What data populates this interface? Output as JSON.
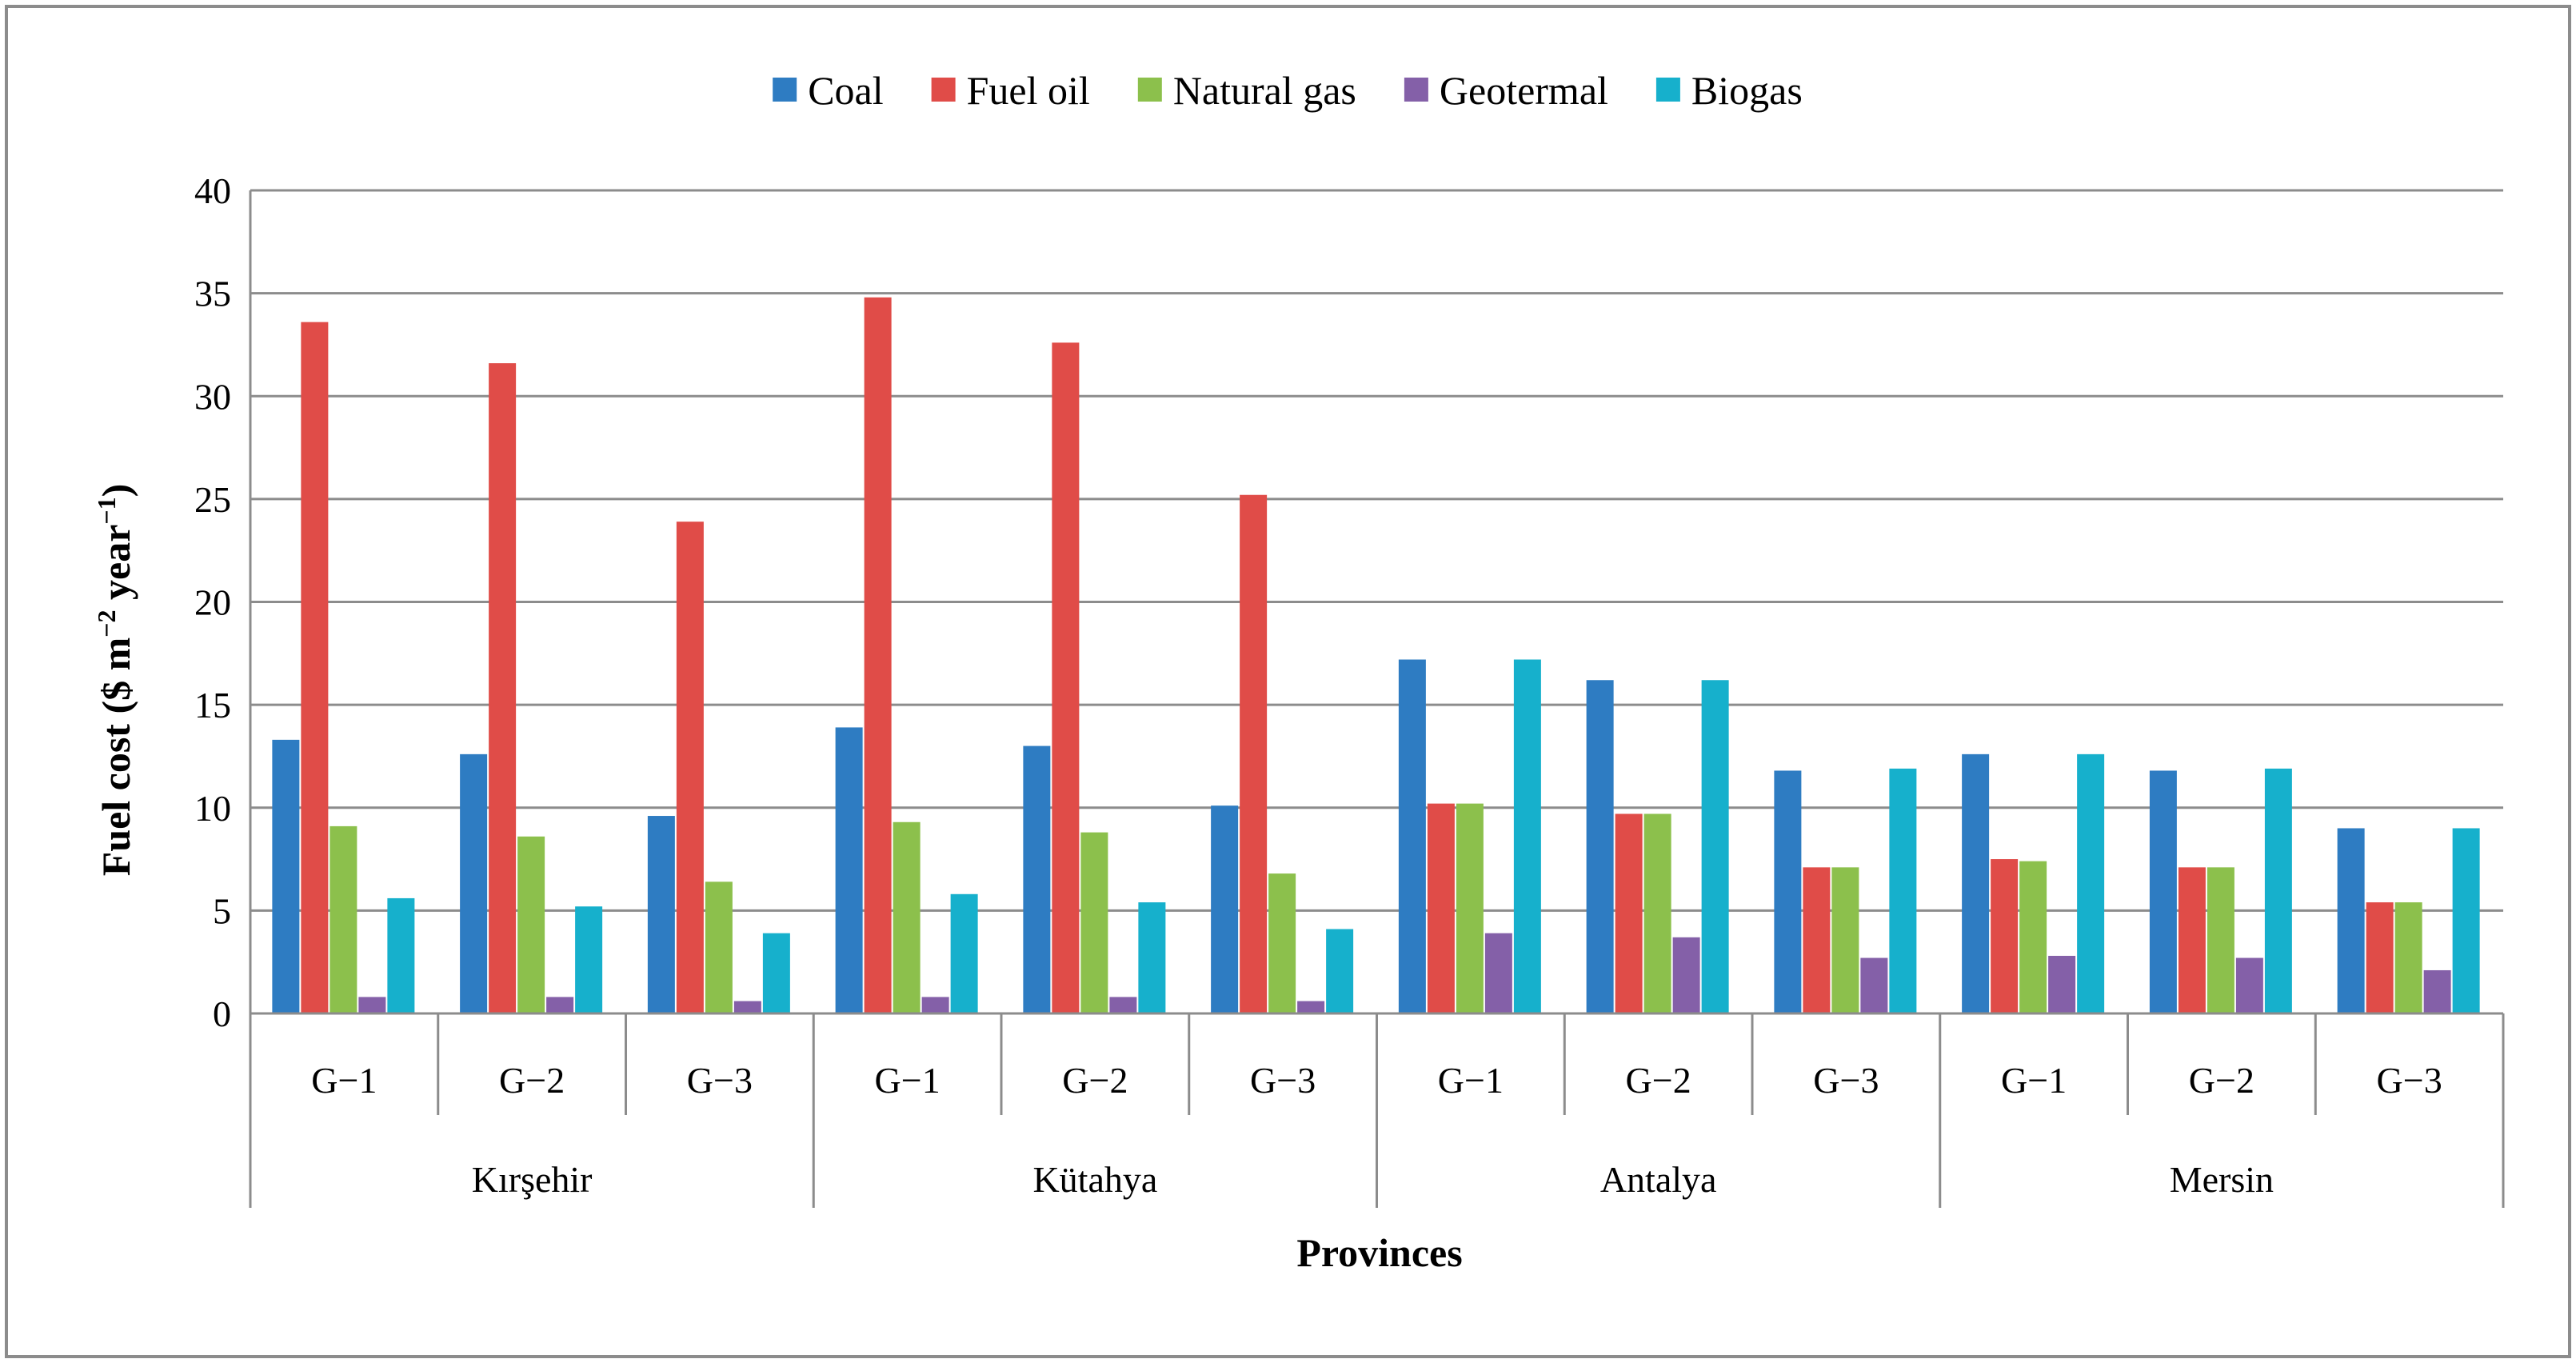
{
  "chart_data": {
    "type": "bar",
    "title": "",
    "xlabel": "Provinces",
    "ylabel": "Fuel cost ($ m−2 year−1)",
    "ylabel_parts": {
      "main": "Fuel cost ($ m",
      "sup1": "−2",
      "mid": " year",
      "sup2": "−1",
      "end": ")"
    },
    "ylim": [
      0,
      40
    ],
    "yticks": [
      "0",
      "5",
      "10",
      "15",
      "20",
      "25",
      "30",
      "35",
      "40"
    ],
    "grid": true,
    "legend_position": "top-center",
    "groups": [
      {
        "name": "Kırşehir",
        "subcategories": [
          "G−1",
          "G−2",
          "G−3"
        ]
      },
      {
        "name": "Kütahya",
        "subcategories": [
          "G−1",
          "G−2",
          "G−3"
        ]
      },
      {
        "name": "Antalya",
        "subcategories": [
          "G−1",
          "G−2",
          "G−3"
        ]
      },
      {
        "name": "Mersin",
        "subcategories": [
          "G−1",
          "G−2",
          "G−3"
        ]
      }
    ],
    "series": [
      {
        "name": "Coal",
        "color": "#2e7cc2",
        "values": [
          13.3,
          12.6,
          9.6,
          13.9,
          13.0,
          10.1,
          17.2,
          16.2,
          11.8,
          12.6,
          11.8,
          9.0
        ]
      },
      {
        "name": "Fuel oil",
        "color": "#e04c48",
        "values": [
          33.6,
          31.6,
          23.9,
          34.8,
          32.6,
          25.2,
          10.2,
          9.7,
          7.1,
          7.5,
          7.1,
          5.4
        ]
      },
      {
        "name": "Natural gas",
        "color": "#8cc04c",
        "values": [
          9.1,
          8.6,
          6.4,
          9.3,
          8.8,
          6.8,
          10.2,
          9.7,
          7.1,
          7.4,
          7.1,
          5.4
        ]
      },
      {
        "name": "Geotermal",
        "color": "#8460a8",
        "values": [
          0.8,
          0.8,
          0.6,
          0.8,
          0.8,
          0.6,
          3.9,
          3.7,
          2.7,
          2.8,
          2.7,
          2.1
        ]
      },
      {
        "name": "Biogas",
        "color": "#16b0cc",
        "values": [
          5.6,
          5.2,
          3.9,
          5.8,
          5.4,
          4.1,
          17.2,
          16.2,
          11.9,
          12.6,
          11.9,
          9.0
        ]
      }
    ]
  }
}
